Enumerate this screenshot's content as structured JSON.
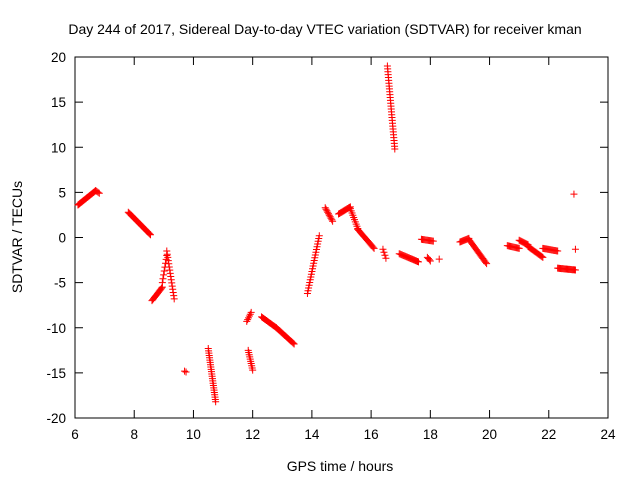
{
  "chart_data": {
    "type": "scatter",
    "title": "Day 244 of 2017, Sidereal Day-to-day VTEC variation (SDTVAR) for receiver kman",
    "xlabel": "GPS time / hours",
    "ylabel": "SDTVAR / TECUs",
    "xlim": [
      6,
      24
    ],
    "ylim": [
      -20,
      20
    ],
    "xticks": [
      "6",
      "8",
      "10",
      "12",
      "14",
      "16",
      "18",
      "20",
      "22",
      "24"
    ],
    "yticks": [
      "20",
      "15",
      "10",
      "5",
      "0",
      "-5",
      "-10",
      "-15",
      "-20"
    ],
    "grid": false,
    "legend": "none",
    "marker": "+",
    "marker_color": "#ff0000",
    "segments": [
      {
        "x0": 6.1,
        "x1": 6.7,
        "y0": 3.6,
        "y1": 5.2,
        "n": 24
      },
      {
        "x0": 6.7,
        "x1": 6.82,
        "y0": 5.2,
        "y1": 4.9,
        "n": 4
      },
      {
        "x0": 7.8,
        "x1": 8.55,
        "y0": 2.8,
        "y1": 0.3,
        "n": 28
      },
      {
        "x0": 8.6,
        "x1": 8.95,
        "y0": -7.0,
        "y1": -5.5,
        "n": 14
      },
      {
        "x0": 8.95,
        "x1": 9.1,
        "y0": -5.0,
        "y1": -2.0,
        "n": 8
      },
      {
        "x0": 9.1,
        "x1": 9.35,
        "y0": -1.5,
        "y1": -6.8,
        "n": 16
      },
      {
        "x0": 9.7,
        "x1": 9.75,
        "y0": -14.8,
        "y1": -14.9,
        "n": 2
      },
      {
        "x0": 10.5,
        "x1": 10.75,
        "y0": -12.3,
        "y1": -18.2,
        "n": 24
      },
      {
        "x0": 11.8,
        "x1": 11.95,
        "y0": -9.3,
        "y1": -8.3,
        "n": 6
      },
      {
        "x0": 11.85,
        "x1": 12.0,
        "y0": -12.5,
        "y1": -14.7,
        "n": 10
      },
      {
        "x0": 12.3,
        "x1": 12.8,
        "y0": -8.8,
        "y1": -10.0,
        "n": 16
      },
      {
        "x0": 12.8,
        "x1": 13.4,
        "y0": -10.0,
        "y1": -11.8,
        "n": 20
      },
      {
        "x0": 13.85,
        "x1": 14.25,
        "y0": -6.2,
        "y1": 0.2,
        "n": 22
      },
      {
        "x0": 14.45,
        "x1": 14.7,
        "y0": 3.3,
        "y1": 1.8,
        "n": 10
      },
      {
        "x0": 14.9,
        "x1": 15.3,
        "y0": 2.6,
        "y1": 3.4,
        "n": 14
      },
      {
        "x0": 15.3,
        "x1": 15.55,
        "y0": 3.2,
        "y1": 1.0,
        "n": 10
      },
      {
        "x0": 15.55,
        "x1": 16.1,
        "y0": 0.9,
        "y1": -1.2,
        "n": 18
      },
      {
        "x0": 16.4,
        "x1": 16.5,
        "y0": -1.3,
        "y1": -2.3,
        "n": 4
      },
      {
        "x0": 16.55,
        "x1": 16.8,
        "y0": 19.0,
        "y1": 9.8,
        "n": 30
      },
      {
        "x0": 16.95,
        "x1": 17.6,
        "y0": -1.8,
        "y1": -2.7,
        "n": 20
      },
      {
        "x0": 17.7,
        "x1": 18.1,
        "y0": -0.2,
        "y1": -0.4,
        "n": 12
      },
      {
        "x0": 17.9,
        "x1": 18.0,
        "y0": -2.2,
        "y1": -2.6,
        "n": 4
      },
      {
        "x0": 18.3,
        "x1": 18.3,
        "y0": -2.4,
        "y1": -2.4,
        "n": 1
      },
      {
        "x0": 19.0,
        "x1": 19.3,
        "y0": -0.5,
        "y1": -0.1,
        "n": 10
      },
      {
        "x0": 19.3,
        "x1": 19.9,
        "y0": -0.2,
        "y1": -2.9,
        "n": 20
      },
      {
        "x0": 20.6,
        "x1": 21.0,
        "y0": -0.9,
        "y1": -1.2,
        "n": 12
      },
      {
        "x0": 21.0,
        "x1": 21.3,
        "y0": -0.3,
        "y1": -0.8,
        "n": 10
      },
      {
        "x0": 21.3,
        "x1": 21.8,
        "y0": -1.0,
        "y1": -2.2,
        "n": 16
      },
      {
        "x0": 21.8,
        "x1": 22.3,
        "y0": -1.2,
        "y1": -1.5,
        "n": 16
      },
      {
        "x0": 22.3,
        "x1": 22.9,
        "y0": -3.4,
        "y1": -3.6,
        "n": 20
      },
      {
        "x0": 22.9,
        "x1": 22.9,
        "y0": -1.3,
        "y1": -1.3,
        "n": 1
      },
      {
        "x0": 22.85,
        "x1": 22.85,
        "y0": 4.8,
        "y1": 4.8,
        "n": 1
      }
    ]
  }
}
